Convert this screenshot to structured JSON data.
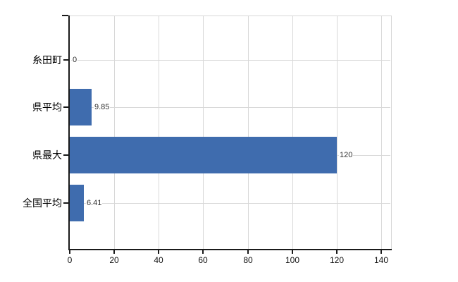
{
  "chart_data": {
    "type": "bar",
    "orientation": "horizontal",
    "title": "",
    "xlabel": "",
    "ylabel": "",
    "categories": [
      "糸田町",
      "県平均",
      "県最大",
      "全国平均"
    ],
    "values": [
      0,
      9.85,
      120,
      6.41
    ],
    "value_labels": [
      "0",
      "9.85",
      "120",
      "6.41"
    ],
    "x_ticks": [
      0,
      20,
      40,
      60,
      80,
      100,
      120,
      140
    ],
    "x_tick_labels": [
      "0",
      "20",
      "40",
      "60",
      "80",
      "100",
      "120",
      "140"
    ],
    "xlim": [
      0,
      140
    ],
    "grid": true,
    "legend": false,
    "colors": {
      "bar": "#3F6CAE",
      "axis": "#1A1A1A",
      "grid": "#D8D8D8",
      "value_text": "#333333",
      "label_text": "#000000",
      "background": "#FFFFFF"
    }
  }
}
